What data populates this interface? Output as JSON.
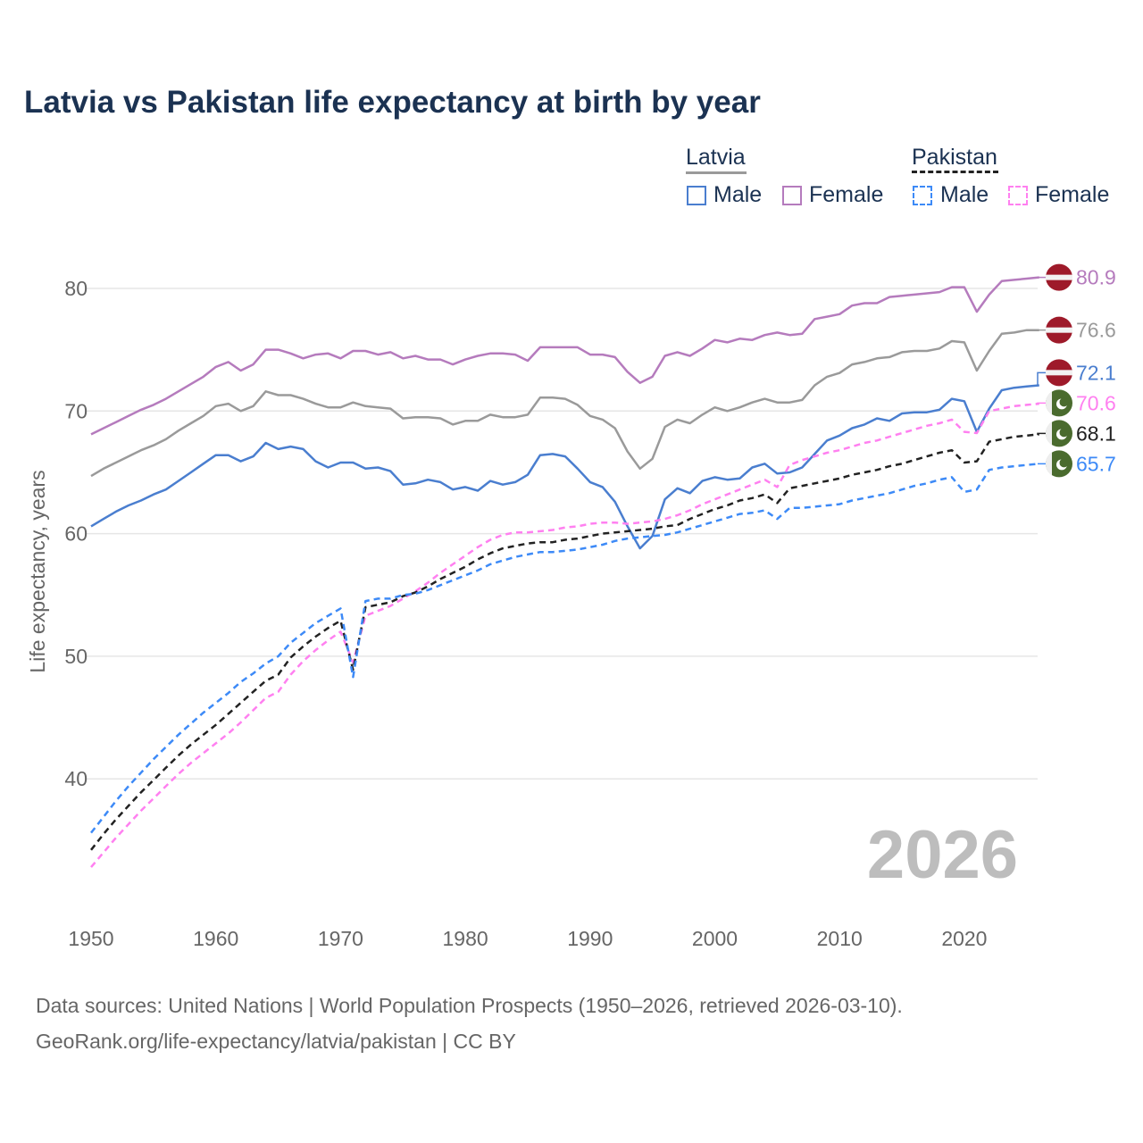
{
  "title": "Latvia vs Pakistan life expectancy at birth by year",
  "legend": {
    "groups": [
      {
        "name": "Latvia",
        "items": [
          "Male",
          "Female"
        ]
      },
      {
        "name": "Pakistan",
        "items": [
          "Male",
          "Female"
        ]
      }
    ]
  },
  "watermark_year": "2026",
  "source": {
    "line1": "Data sources: United Nations | World Population Prospects (1950–2026, retrieved 2026-03-10).",
    "line2": "GeoRank.org/life-expectancy/latvia/pakistan | CC BY"
  },
  "chart_data": {
    "type": "line",
    "title": "Latvia vs Pakistan life expectancy at birth by year",
    "xlabel": "",
    "ylabel": "Life expectancy, years",
    "xlim": [
      1950,
      2026
    ],
    "ylim": [
      31,
      83
    ],
    "xticks": [
      1950,
      1960,
      1970,
      1980,
      1990,
      2000,
      2010,
      2020
    ],
    "yticks": [
      40,
      50,
      60,
      70,
      80
    ],
    "grid": true,
    "x_start": 1950,
    "series": [
      {
        "name": "Latvia Female",
        "color": "#b57bbd",
        "dash": false,
        "flag": "latvia",
        "end_label": "80.9",
        "values": [
          68.1,
          68.6,
          69.1,
          69.6,
          70.1,
          70.5,
          71.0,
          71.6,
          72.2,
          72.8,
          73.6,
          74.0,
          73.3,
          73.8,
          75.0,
          75.0,
          74.7,
          74.3,
          74.6,
          74.7,
          74.3,
          74.9,
          74.9,
          74.6,
          74.8,
          74.3,
          74.5,
          74.2,
          74.2,
          73.8,
          74.2,
          74.5,
          74.7,
          74.7,
          74.6,
          74.1,
          75.2,
          75.2,
          75.2,
          75.2,
          74.6,
          74.6,
          74.4,
          73.2,
          72.3,
          72.8,
          74.5,
          74.8,
          74.5,
          75.1,
          75.8,
          75.6,
          75.9,
          75.8,
          76.2,
          76.4,
          76.2,
          76.3,
          77.5,
          77.7,
          77.9,
          78.6,
          78.8,
          78.8,
          79.3,
          79.4,
          79.5,
          79.6,
          79.7,
          80.1,
          80.1,
          78.1,
          79.5,
          80.6,
          80.7,
          80.8,
          80.9
        ]
      },
      {
        "name": "Latvia",
        "color": "#9a9a9a",
        "dash": false,
        "flag": "latvia",
        "end_label": "76.6",
        "values": [
          64.7,
          65.3,
          65.8,
          66.3,
          66.8,
          67.2,
          67.7,
          68.4,
          69.0,
          69.6,
          70.4,
          70.6,
          70.0,
          70.4,
          71.6,
          71.3,
          71.3,
          71.0,
          70.6,
          70.3,
          70.3,
          70.7,
          70.4,
          70.3,
          70.2,
          69.4,
          69.5,
          69.5,
          69.4,
          68.9,
          69.2,
          69.2,
          69.7,
          69.5,
          69.5,
          69.7,
          71.1,
          71.1,
          71.0,
          70.5,
          69.6,
          69.3,
          68.6,
          66.7,
          65.3,
          66.1,
          68.7,
          69.3,
          69.0,
          69.7,
          70.3,
          70.0,
          70.3,
          70.7,
          71.0,
          70.7,
          70.7,
          70.9,
          72.1,
          72.8,
          73.1,
          73.8,
          74.0,
          74.3,
          74.4,
          74.8,
          74.9,
          74.9,
          75.1,
          75.7,
          75.6,
          73.3,
          74.9,
          76.3,
          76.4,
          76.6,
          76.6
        ]
      },
      {
        "name": "Latvia Male",
        "color": "#4a7ecf",
        "dash": false,
        "flag": "latvia",
        "end_label": "72.1",
        "values": [
          60.6,
          61.2,
          61.8,
          62.3,
          62.7,
          63.2,
          63.6,
          64.3,
          65.0,
          65.7,
          66.4,
          66.4,
          65.9,
          66.3,
          67.4,
          66.9,
          67.1,
          66.9,
          65.9,
          65.4,
          65.8,
          65.8,
          65.3,
          65.4,
          65.1,
          64.0,
          64.1,
          64.4,
          64.2,
          63.6,
          63.8,
          63.5,
          64.3,
          64.0,
          64.2,
          64.8,
          66.4,
          66.5,
          66.3,
          65.3,
          64.2,
          63.8,
          62.6,
          60.6,
          58.8,
          59.8,
          62.8,
          63.7,
          63.3,
          64.3,
          64.6,
          64.4,
          64.5,
          65.4,
          65.7,
          64.9,
          65.0,
          65.4,
          66.5,
          67.6,
          68.0,
          68.6,
          68.9,
          69.4,
          69.2,
          69.8,
          69.9,
          69.9,
          70.1,
          71.0,
          70.8,
          68.3,
          70.2,
          71.7,
          71.9,
          72.0,
          72.1
        ]
      },
      {
        "name": "Pakistan Female",
        "color": "#ff80f0",
        "dash": true,
        "flag": "pakistan",
        "end_label": "70.6",
        "values": [
          32.8,
          34.0,
          35.2,
          36.3,
          37.4,
          38.4,
          39.4,
          40.4,
          41.3,
          42.1,
          42.9,
          43.7,
          44.6,
          45.6,
          46.6,
          47.1,
          48.5,
          49.6,
          50.5,
          51.3,
          52.0,
          49.5,
          53.3,
          53.7,
          54.1,
          54.7,
          55.3,
          56.0,
          56.8,
          57.5,
          58.2,
          58.9,
          59.5,
          59.9,
          60.1,
          60.1,
          60.2,
          60.3,
          60.5,
          60.6,
          60.8,
          60.9,
          60.9,
          60.8,
          60.9,
          61.0,
          61.2,
          61.5,
          61.9,
          62.4,
          62.8,
          63.2,
          63.6,
          64.0,
          64.4,
          63.8,
          65.6,
          66.0,
          66.3,
          66.6,
          66.8,
          67.1,
          67.4,
          67.6,
          67.9,
          68.2,
          68.5,
          68.8,
          69.0,
          69.3,
          68.3,
          68.2,
          70.0,
          70.2,
          70.4,
          70.5,
          70.6
        ]
      },
      {
        "name": "Pakistan",
        "color": "#222222",
        "dash": true,
        "flag": "pakistan",
        "end_label": "68.1",
        "values": [
          34.2,
          35.5,
          36.7,
          37.8,
          38.9,
          39.9,
          40.9,
          41.9,
          42.8,
          43.6,
          44.4,
          45.3,
          46.2,
          47.1,
          48.0,
          48.5,
          49.9,
          50.8,
          51.6,
          52.3,
          52.9,
          48.9,
          54.0,
          54.2,
          54.4,
          54.9,
          55.2,
          55.7,
          56.3,
          56.8,
          57.3,
          57.9,
          58.4,
          58.8,
          59.0,
          59.2,
          59.3,
          59.3,
          59.5,
          59.6,
          59.8,
          60.0,
          60.1,
          60.2,
          60.3,
          60.4,
          60.6,
          60.7,
          61.2,
          61.6,
          62.0,
          62.3,
          62.7,
          62.9,
          63.2,
          62.5,
          63.7,
          63.9,
          64.1,
          64.3,
          64.5,
          64.8,
          65.0,
          65.2,
          65.5,
          65.7,
          66.0,
          66.3,
          66.6,
          66.8,
          65.8,
          65.9,
          67.5,
          67.7,
          67.9,
          68.0,
          68.1
        ]
      },
      {
        "name": "Pakistan Male",
        "color": "#3d8af7",
        "dash": true,
        "flag": "pakistan",
        "end_label": "65.7",
        "values": [
          35.6,
          36.9,
          38.2,
          39.4,
          40.5,
          41.6,
          42.6,
          43.6,
          44.5,
          45.4,
          46.2,
          47.0,
          47.9,
          48.6,
          49.4,
          50.0,
          51.1,
          51.9,
          52.7,
          53.3,
          53.9,
          48.3,
          54.5,
          54.7,
          54.7,
          55.0,
          55.1,
          55.4,
          55.8,
          56.2,
          56.6,
          57.0,
          57.5,
          57.8,
          58.1,
          58.3,
          58.5,
          58.5,
          58.6,
          58.7,
          58.9,
          59.1,
          59.4,
          59.6,
          59.7,
          59.8,
          59.9,
          60.1,
          60.4,
          60.7,
          61.0,
          61.3,
          61.6,
          61.7,
          61.9,
          61.2,
          62.1,
          62.1,
          62.2,
          62.3,
          62.4,
          62.7,
          62.9,
          63.1,
          63.3,
          63.6,
          63.9,
          64.1,
          64.4,
          64.6,
          63.4,
          63.6,
          65.2,
          65.4,
          65.5,
          65.6,
          65.7
        ]
      }
    ]
  },
  "colors": {
    "title": "#1b3252",
    "latvia_red": "#9e1a2a",
    "pakistan_green": "#4a6b2e"
  }
}
